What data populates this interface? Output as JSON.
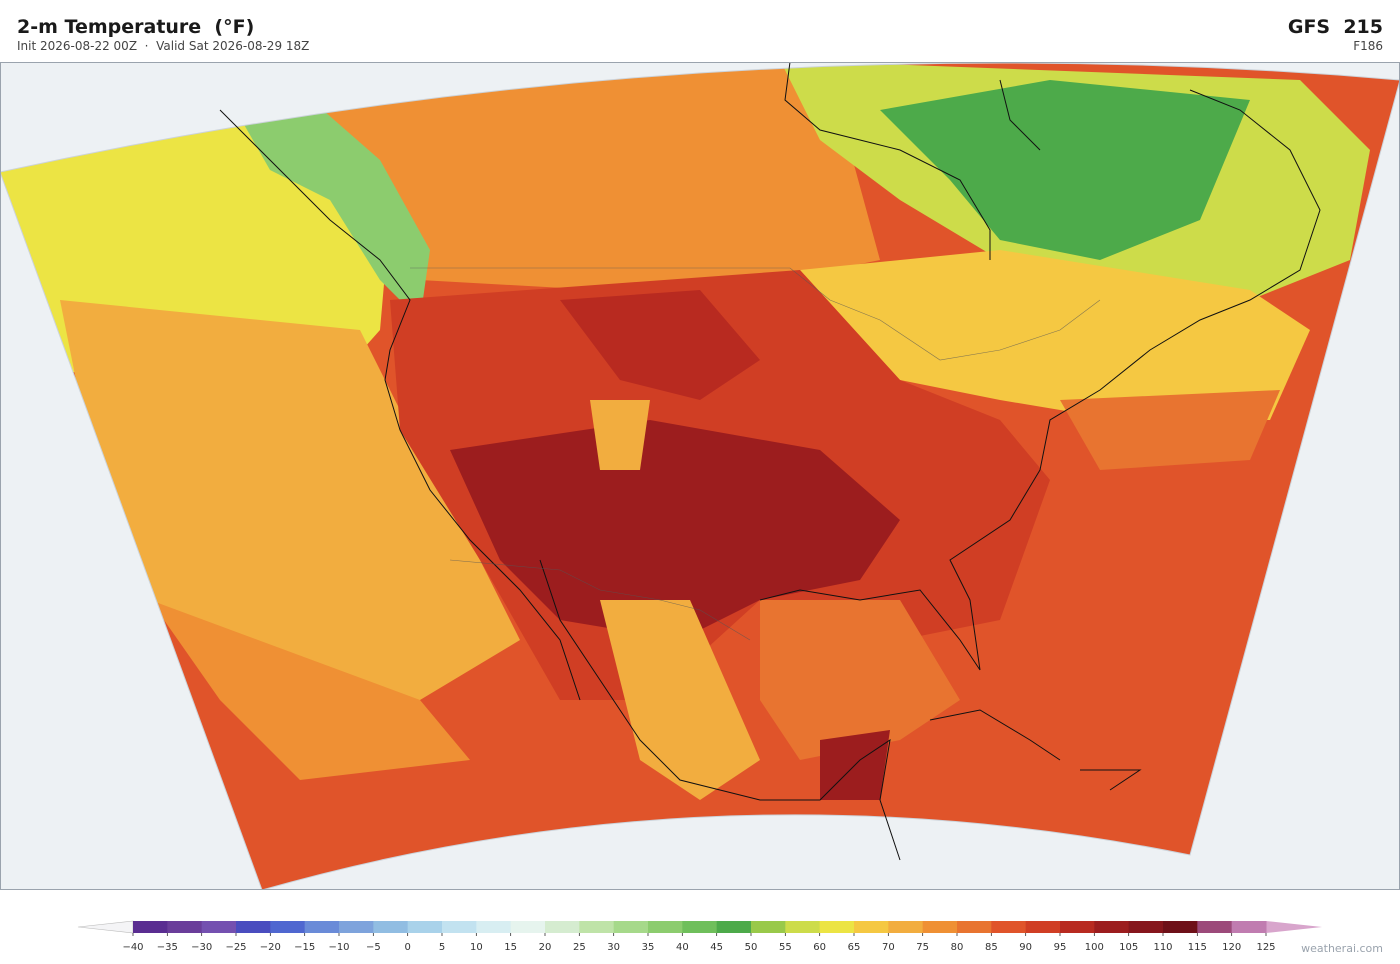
{
  "header": {
    "title": "2-m Temperature  (°F)",
    "subtitle": "Init 2026-08-22 00Z  ·  Valid Sat 2026-08-29 18Z",
    "model": "GFS  215",
    "forecast_hour": "F186"
  },
  "colorbar": {
    "ticks": [
      {
        "value": -40,
        "label": "−40"
      },
      {
        "value": -35,
        "label": "−35"
      },
      {
        "value": -30,
        "label": "−30"
      },
      {
        "value": -25,
        "label": "−25"
      },
      {
        "value": -20,
        "label": "−20"
      },
      {
        "value": -15,
        "label": "−15"
      },
      {
        "value": -10,
        "label": "−10"
      },
      {
        "value": -5,
        "label": "−5"
      },
      0,
      5,
      10,
      15,
      20,
      25,
      30,
      35,
      40,
      45,
      50,
      55,
      60,
      65,
      70,
      75,
      80,
      85,
      90,
      95,
      100,
      105,
      110,
      115,
      120,
      125
    ],
    "colors": [
      "#5a2d91",
      "#6a3d9a",
      "#7450b0",
      "#4a4dbf",
      "#4f67d0",
      "#6a8bd8",
      "#7ea3dc",
      "#91bde2",
      "#a9d2ea",
      "#c2e2f0",
      "#d8eef2",
      "#e6f4ee",
      "#d5ecd0",
      "#bfe3a8",
      "#a6d98a",
      "#8ccc6e",
      "#6fbf5b",
      "#4daa4a",
      "#99c94a",
      "#cddc4a",
      "#ece444",
      "#f5c842",
      "#f2ad3f",
      "#ef9034",
      "#e87430",
      "#e0542a",
      "#d03e24",
      "#b82a20",
      "#9c1d1e",
      "#86161c",
      "#6e1018",
      "#9c4a7a",
      "#c07cb0"
    ],
    "under_color": "#f4f4f6",
    "over_color": "#d8a5cc"
  },
  "footer": {
    "watermark": "weatherai.com"
  }
}
